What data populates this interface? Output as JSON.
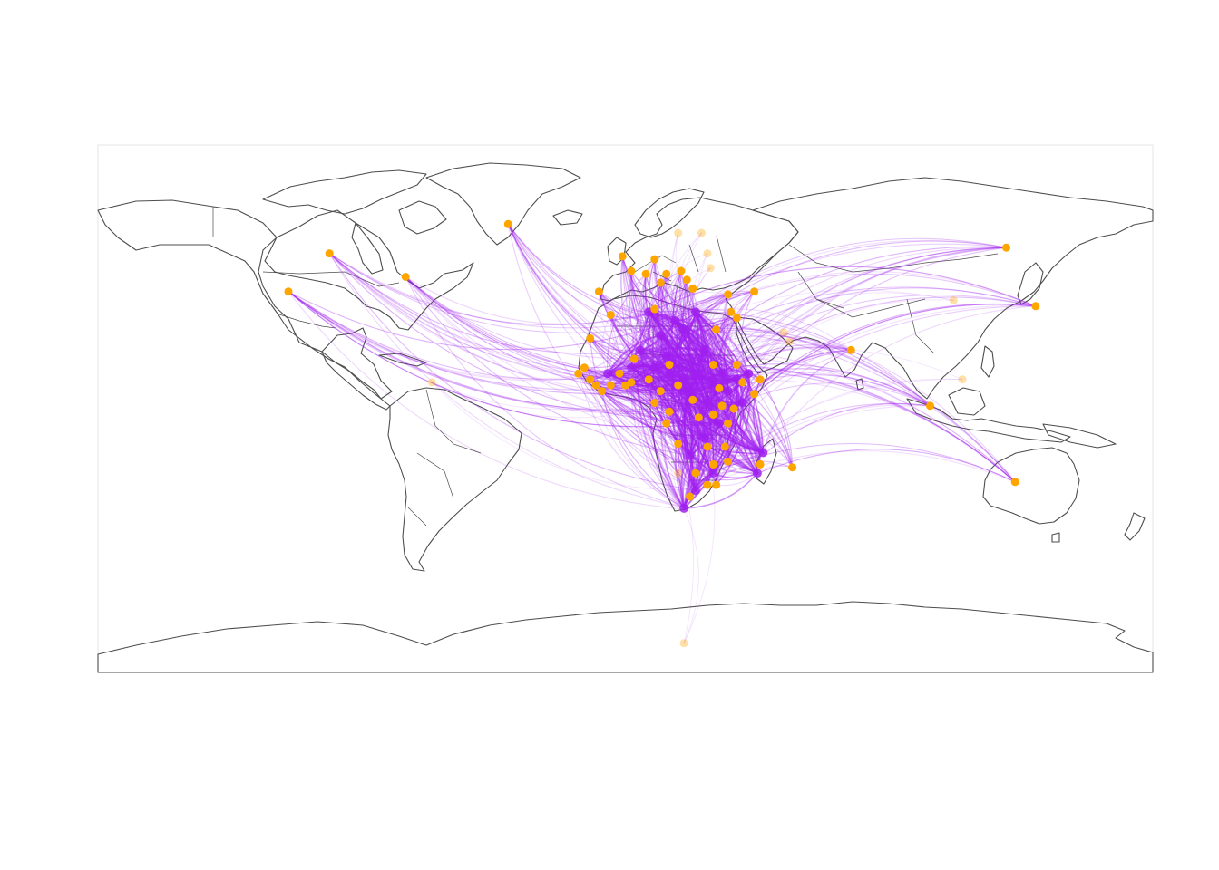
{
  "map": {
    "projection": "equirectangular",
    "lon_range": [
      -180,
      180
    ],
    "lat_range": [
      -90,
      90
    ],
    "colors": {
      "background": "#ffffff",
      "coastline": "#4d4d4d",
      "flow_line": "#a020f0",
      "flow_endpoint": "#a020f0",
      "node": "#ffa500"
    },
    "hub_region": "Africa",
    "nodes": [
      {
        "lon": -75,
        "lat": 45,
        "w": "strong"
      },
      {
        "lon": -101,
        "lat": 53,
        "w": "strong"
      },
      {
        "lon": -115,
        "lat": 40,
        "w": "strong"
      },
      {
        "lon": -40,
        "lat": 63,
        "w": "strong"
      },
      {
        "lon": 140,
        "lat": 35,
        "w": "strong"
      },
      {
        "lon": 130,
        "lat": 55,
        "w": "strong"
      },
      {
        "lon": 112,
        "lat": 37,
        "w": "faint"
      },
      {
        "lon": 133,
        "lat": -25,
        "w": "strong"
      },
      {
        "lon": 104,
        "lat": 1,
        "w": "strong"
      },
      {
        "lon": 115,
        "lat": 10,
        "w": "faint"
      },
      {
        "lon": 77,
        "lat": 20,
        "w": "strong"
      },
      {
        "lon": 56,
        "lat": 23,
        "w": "faint"
      },
      {
        "lon": 54,
        "lat": 26,
        "w": "faint"
      },
      {
        "lon": 57,
        "lat": -20,
        "w": "strong"
      },
      {
        "lon": -66,
        "lat": 9,
        "w": "faint"
      },
      {
        "lon": 20,
        "lat": -80,
        "w": "faint"
      },
      {
        "lon": 26,
        "lat": 60,
        "w": "faint"
      },
      {
        "lon": 29,
        "lat": 48,
        "w": "faint"
      },
      {
        "lon": 2,
        "lat": 47,
        "w": "strong"
      },
      {
        "lon": -1,
        "lat": 52,
        "w": "strong"
      },
      {
        "lon": 10,
        "lat": 51,
        "w": "strong"
      },
      {
        "lon": 14,
        "lat": 46,
        "w": "strong"
      },
      {
        "lon": 19,
        "lat": 47,
        "w": "strong"
      },
      {
        "lon": 21,
        "lat": 44,
        "w": "strong"
      },
      {
        "lon": 23,
        "lat": 41,
        "w": "strong"
      },
      {
        "lon": 7,
        "lat": 46,
        "w": "strong"
      },
      {
        "lon": 12,
        "lat": 43,
        "w": "strong"
      },
      {
        "lon": -9,
        "lat": 40,
        "w": "strong"
      },
      {
        "lon": 35,
        "lat": 39,
        "w": "strong"
      },
      {
        "lon": 44,
        "lat": 40,
        "w": "strong"
      },
      {
        "lon": 36,
        "lat": 33,
        "w": "strong"
      },
      {
        "lon": 38,
        "lat": 31,
        "w": "strong"
      },
      {
        "lon": 31,
        "lat": 27,
        "w": "strong"
      },
      {
        "lon": 10,
        "lat": 34,
        "w": "strong"
      },
      {
        "lon": -5,
        "lat": 32,
        "w": "strong"
      },
      {
        "lon": -12,
        "lat": 24,
        "w": "strong"
      },
      {
        "lon": -14,
        "lat": 14,
        "w": "strong"
      },
      {
        "lon": -16,
        "lat": 12,
        "w": "strong"
      },
      {
        "lon": -12,
        "lat": 10,
        "w": "strong"
      },
      {
        "lon": -10,
        "lat": 8,
        "w": "strong"
      },
      {
        "lon": -8,
        "lat": 6,
        "w": "strong"
      },
      {
        "lon": -5,
        "lat": 8,
        "w": "strong"
      },
      {
        "lon": -2,
        "lat": 12,
        "w": "strong"
      },
      {
        "lon": 0,
        "lat": 8,
        "w": "strong"
      },
      {
        "lon": 2,
        "lat": 9,
        "w": "strong"
      },
      {
        "lon": 3,
        "lat": 17,
        "w": "strong"
      },
      {
        "lon": 8,
        "lat": 10,
        "w": "strong"
      },
      {
        "lon": 12,
        "lat": 6,
        "w": "strong"
      },
      {
        "lon": 10,
        "lat": 2,
        "w": "strong"
      },
      {
        "lon": 15,
        "lat": 15,
        "w": "strong"
      },
      {
        "lon": 18,
        "lat": 8,
        "w": "strong"
      },
      {
        "lon": 23,
        "lat": 3,
        "w": "strong"
      },
      {
        "lon": 30,
        "lat": 15,
        "w": "strong"
      },
      {
        "lon": 32,
        "lat": 7,
        "w": "strong"
      },
      {
        "lon": 40,
        "lat": 9,
        "w": "strong"
      },
      {
        "lon": 44,
        "lat": 5,
        "w": "strong"
      },
      {
        "lon": 46,
        "lat": 10,
        "w": "strong"
      },
      {
        "lon": 38,
        "lat": 15,
        "w": "strong"
      },
      {
        "lon": 33,
        "lat": 1,
        "w": "strong"
      },
      {
        "lon": 30,
        "lat": -2,
        "w": "strong"
      },
      {
        "lon": 35,
        "lat": -5,
        "w": "strong"
      },
      {
        "lon": 37,
        "lat": 0,
        "w": "strong"
      },
      {
        "lon": 25,
        "lat": -3,
        "w": "strong"
      },
      {
        "lon": 15,
        "lat": -1,
        "w": "strong"
      },
      {
        "lon": 14,
        "lat": -5,
        "w": "strong"
      },
      {
        "lon": 18,
        "lat": -12,
        "w": "strong"
      },
      {
        "lon": 28,
        "lat": -13,
        "w": "strong"
      },
      {
        "lon": 34,
        "lat": -13,
        "w": "strong"
      },
      {
        "lon": 30,
        "lat": -19,
        "w": "strong"
      },
      {
        "lon": 24,
        "lat": -22,
        "w": "strong"
      },
      {
        "lon": 18,
        "lat": -22,
        "w": "faint"
      },
      {
        "lon": 28,
        "lat": -26,
        "w": "strong"
      },
      {
        "lon": 31,
        "lat": -26,
        "w": "strong"
      },
      {
        "lon": 22,
        "lat": -30,
        "w": "strong"
      },
      {
        "lon": 35,
        "lat": -18,
        "w": "strong"
      },
      {
        "lon": 46,
        "lat": -19,
        "w": "strong"
      },
      {
        "lon": 28,
        "lat": 53,
        "w": "faint"
      },
      {
        "lon": 18,
        "lat": 60,
        "w": "faint"
      }
    ],
    "hub_points": [
      {
        "lon": 20,
        "lat": 10
      },
      {
        "lon": 25,
        "lat": 12
      },
      {
        "lon": 30,
        "lat": 9
      },
      {
        "lon": 15,
        "lat": 12
      },
      {
        "lon": 10,
        "lat": 14
      },
      {
        "lon": 35,
        "lat": 6
      },
      {
        "lon": 28,
        "lat": 2
      },
      {
        "lon": 22,
        "lat": 5
      },
      {
        "lon": 5,
        "lat": 20
      },
      {
        "lon": 12,
        "lat": 25
      },
      {
        "lon": 20,
        "lat": 27
      },
      {
        "lon": 27,
        "lat": 20
      },
      {
        "lon": 33,
        "lat": 12
      },
      {
        "lon": 40,
        "lat": 2
      },
      {
        "lon": 32,
        "lat": -5
      },
      {
        "lon": 27,
        "lat": -10
      },
      {
        "lon": 22,
        "lat": -16
      },
      {
        "lon": 30,
        "lat": -22
      },
      {
        "lon": 24,
        "lat": -28
      },
      {
        "lon": 20,
        "lat": -34
      },
      {
        "lon": 47,
        "lat": -15
      },
      {
        "lon": 45,
        "lat": -22
      },
      {
        "lon": 17,
        "lat": 30
      },
      {
        "lon": 14,
        "lat": 18
      },
      {
        "lon": -6,
        "lat": 12
      },
      {
        "lon": 2,
        "lat": 14
      },
      {
        "lon": 38,
        "lat": 10
      },
      {
        "lon": 42,
        "lat": 12
      },
      {
        "lon": 24,
        "lat": 33
      },
      {
        "lon": 8,
        "lat": 33
      }
    ]
  }
}
